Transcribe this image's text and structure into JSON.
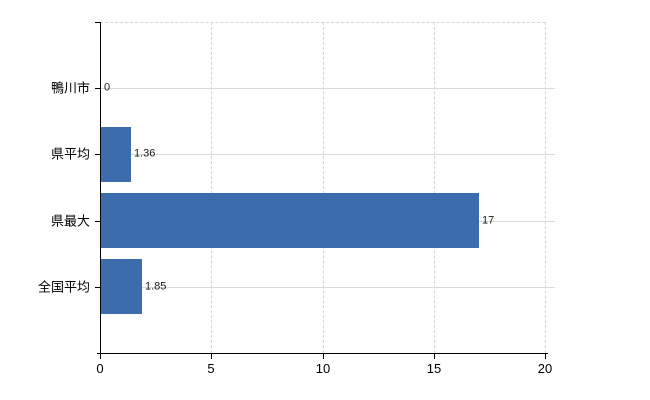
{
  "chart_data": {
    "type": "bar",
    "orientation": "horizontal",
    "title": "",
    "xlabel": "",
    "ylabel": "",
    "categories": [
      "鴨川市",
      "県平均",
      "県最大",
      "全国平均"
    ],
    "values": [
      0,
      1.36,
      17,
      1.85
    ],
    "value_labels": [
      "0",
      "1.36",
      "17",
      "1.85"
    ],
    "x_ticks": [
      0,
      5,
      10,
      15,
      20
    ],
    "xlim": [
      0,
      20
    ],
    "grid": "on",
    "legend": "none",
    "colors": {
      "bar": "#3c6cab",
      "grid_horizontal": "#d7dbd2",
      "grid_vertical": "#d9d2d8",
      "axis": "#000000",
      "text": "#1a1a1a",
      "background": "#ffffff"
    }
  }
}
